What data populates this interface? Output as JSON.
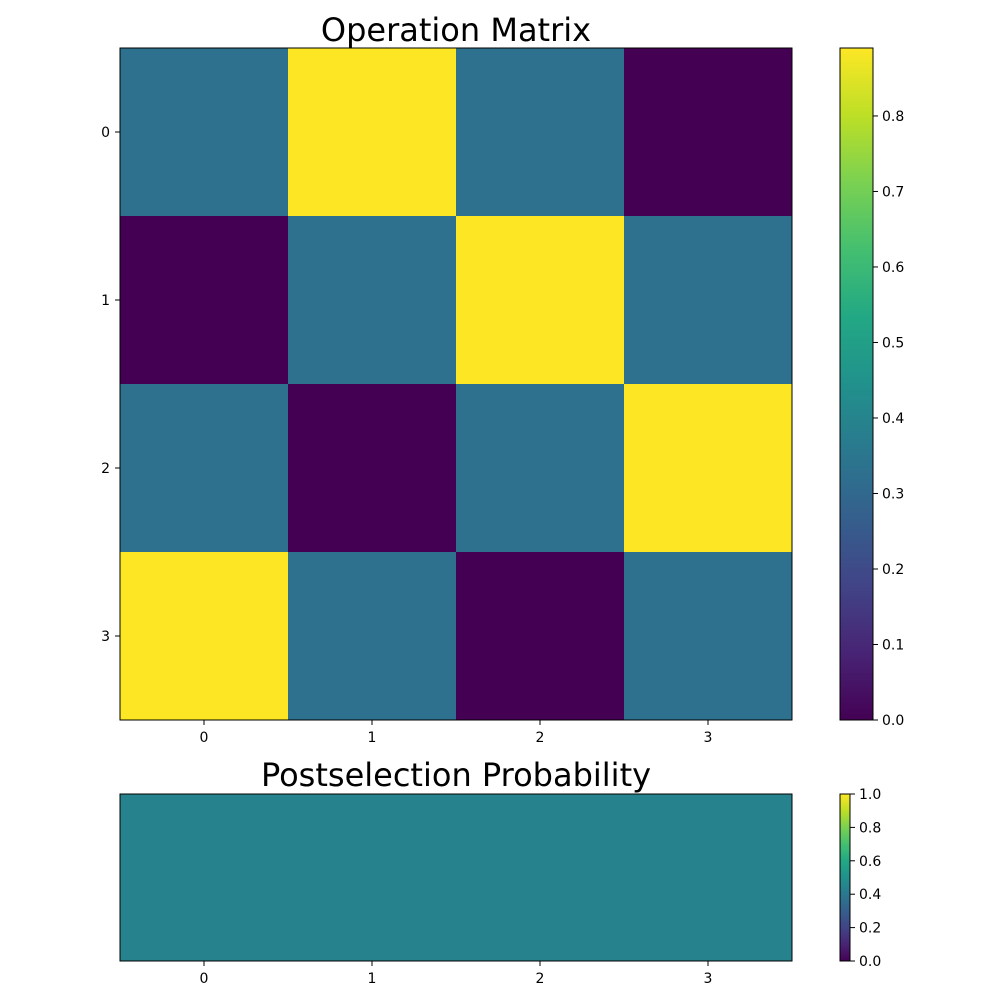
{
  "chart_data": [
    {
      "type": "heatmap",
      "title": "Operation Matrix",
      "x_ticks": [
        "0",
        "1",
        "2",
        "3"
      ],
      "y_ticks": [
        "0",
        "1",
        "2",
        "3"
      ],
      "values": [
        [
          0.33,
          0.89,
          0.33,
          0.0
        ],
        [
          0.0,
          0.33,
          0.89,
          0.33
        ],
        [
          0.33,
          0.0,
          0.33,
          0.89
        ],
        [
          0.89,
          0.33,
          0.0,
          0.33
        ]
      ],
      "colormap": "viridis",
      "vmin": 0.0,
      "vmax": 0.89,
      "colorbar_ticks": [
        "0.0",
        "0.1",
        "0.2",
        "0.3",
        "0.4",
        "0.5",
        "0.6",
        "0.7",
        "0.8"
      ]
    },
    {
      "type": "heatmap",
      "title": "Postselection Probability",
      "x_ticks": [
        "0",
        "1",
        "2",
        "3"
      ],
      "y_ticks": [],
      "values": [
        [
          0.44,
          0.44,
          0.44,
          0.44
        ]
      ],
      "colormap": "viridis",
      "vmin": 0.0,
      "vmax": 1.0,
      "colorbar_ticks": [
        "0.0",
        "0.2",
        "0.4",
        "0.6",
        "0.8",
        "1.0"
      ]
    }
  ]
}
